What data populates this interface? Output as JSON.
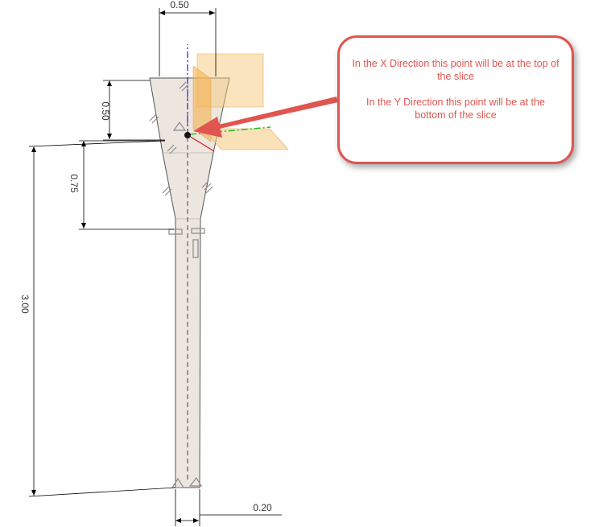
{
  "dimensions": {
    "top_width": "0.50",
    "flare_height": "0.50",
    "taper_height": "0.75",
    "overall_height": "3.00",
    "bottom_width": "0.20"
  },
  "callout": {
    "line1": "In the X Direction this point will be at the top of the slice",
    "line2": "In the Y Direction this point will be at the bottom of the slice"
  },
  "colors": {
    "accent": "#e0554f",
    "part_fill": "#ece6df",
    "plane_fill": "#f5c97d",
    "axis_x": "#e02020",
    "axis_y": "#22c022",
    "axis_z": "#2020e0"
  }
}
